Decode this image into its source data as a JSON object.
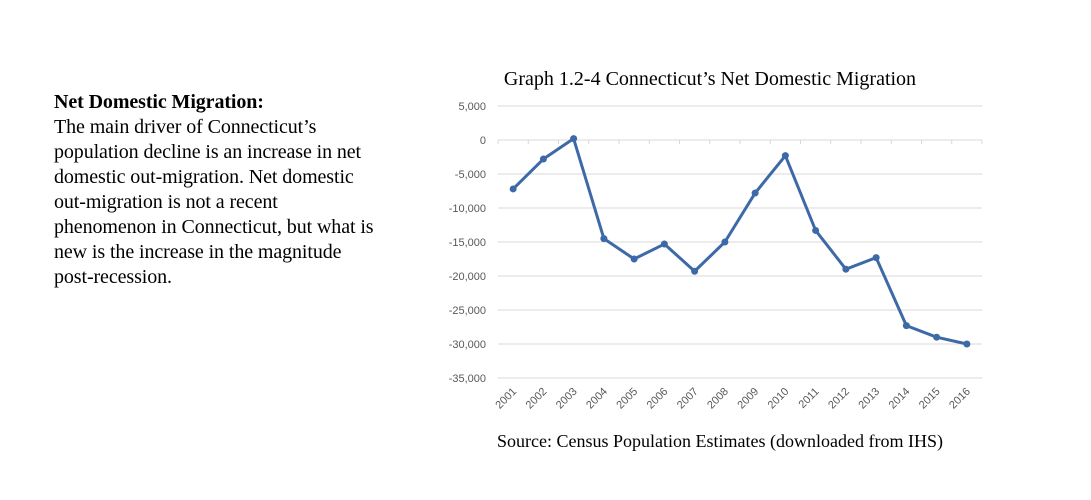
{
  "side": {
    "heading": "Net Domestic Migration:",
    "body": "The main driver of Connecticut’s population decline is an increase in net domestic out-migration. Net domestic out-migration is not a recent phenomenon in Connecticut, but what is new is the increase in the magnitude post-recession."
  },
  "chart_data": {
    "type": "line",
    "title": "Graph 1.2-4 Connecticut’s Net Domestic Migration",
    "source": "Source: Census Population Estimates (downloaded from IHS)",
    "xlabel": "",
    "ylabel": "",
    "categories": [
      "2001",
      "2002",
      "2003",
      "2004",
      "2005",
      "2006",
      "2007",
      "2008",
      "2009",
      "2010",
      "2011",
      "2012",
      "2013",
      "2014",
      "2015",
      "2016"
    ],
    "series": [
      {
        "values": [
          -7200,
          -2800,
          200,
          -14500,
          -17500,
          -15300,
          -19300,
          -15000,
          -7800,
          -2300,
          -13300,
          -19000,
          -17300,
          -27300,
          -29000,
          -30000
        ]
      }
    ],
    "yticks": [
      5000,
      0,
      -5000,
      -10000,
      -15000,
      -20000,
      -25000,
      -30000,
      -35000
    ],
    "ytick_labels": [
      "5,000",
      "0",
      "-5,000",
      "-10,000",
      "-15,000",
      "-20,000",
      "-25,000",
      "-30,000",
      "-35,000"
    ],
    "ylim": [
      -35000,
      5000
    ],
    "grid": true,
    "line_color": "#3d6aa7",
    "grid_color": "#d9d9d9"
  }
}
